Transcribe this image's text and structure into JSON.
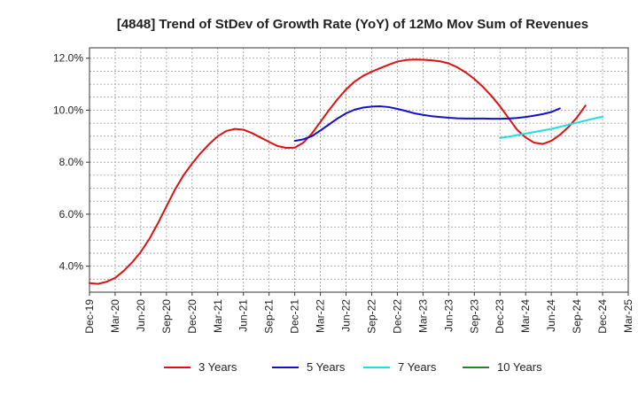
{
  "chart_data": {
    "type": "line",
    "title": "[4848]  Trend of StDev of Growth Rate (YoY) of 12Mo Mov Sum of Revenues",
    "xlabel": "",
    "ylabel": "",
    "ylim": [
      3.0,
      12.4
    ],
    "yticks": [
      4.0,
      6.0,
      8.0,
      10.0,
      12.0
    ],
    "ytick_labels": [
      "4.0%",
      "6.0%",
      "8.0%",
      "10.0%",
      "12.0%"
    ],
    "x_start": "Dec-19",
    "x_end": "Mar-25",
    "x_count_months": 64,
    "xtick_labels": [
      "Dec-19",
      "Mar-20",
      "Jun-20",
      "Sep-20",
      "Dec-20",
      "Mar-21",
      "Jun-21",
      "Sep-21",
      "Dec-21",
      "Mar-22",
      "Jun-22",
      "Sep-22",
      "Dec-22",
      "Mar-23",
      "Jun-23",
      "Sep-23",
      "Dec-23",
      "Mar-24",
      "Jun-24",
      "Sep-24",
      "Dec-24",
      "Mar-25"
    ],
    "grid": true,
    "legend_position": "bottom",
    "series": [
      {
        "name": "3 Years",
        "color": "#dd1111",
        "start_index": 0,
        "values": [
          3.35,
          3.32,
          3.4,
          3.55,
          3.82,
          4.15,
          4.55,
          5.05,
          5.65,
          6.3,
          6.95,
          7.5,
          7.95,
          8.35,
          8.7,
          9.0,
          9.2,
          9.28,
          9.25,
          9.12,
          8.95,
          8.78,
          8.62,
          8.55,
          8.56,
          8.75,
          9.1,
          9.55,
          10.0,
          10.42,
          10.8,
          11.1,
          11.32,
          11.48,
          11.62,
          11.75,
          11.87,
          11.93,
          11.95,
          11.94,
          11.92,
          11.88,
          11.8,
          11.65,
          11.45,
          11.2,
          10.9,
          10.55,
          10.15,
          9.7,
          9.25,
          8.95,
          8.75,
          8.7,
          8.82,
          9.05,
          9.35,
          9.72,
          10.18
        ]
      },
      {
        "name": "5 Years",
        "color": "#1111cc",
        "start_index": 24,
        "values": [
          8.82,
          8.88,
          9.0,
          9.22,
          9.45,
          9.68,
          9.88,
          10.02,
          10.1,
          10.14,
          10.15,
          10.12,
          10.05,
          9.97,
          9.88,
          9.82,
          9.77,
          9.74,
          9.71,
          9.69,
          9.68,
          9.68,
          9.68,
          9.67,
          9.67,
          9.68,
          9.7,
          9.74,
          9.79,
          9.85,
          9.93,
          10.07
        ]
      },
      {
        "name": "7 Years",
        "color": "#22dddd",
        "start_index": 48,
        "values": [
          8.93,
          8.98,
          9.04,
          9.1,
          9.16,
          9.22,
          9.28,
          9.36,
          9.44,
          9.52,
          9.6,
          9.68,
          9.75
        ]
      },
      {
        "name": "10 Years",
        "color": "#228822",
        "start_index": 0,
        "values": []
      }
    ]
  }
}
